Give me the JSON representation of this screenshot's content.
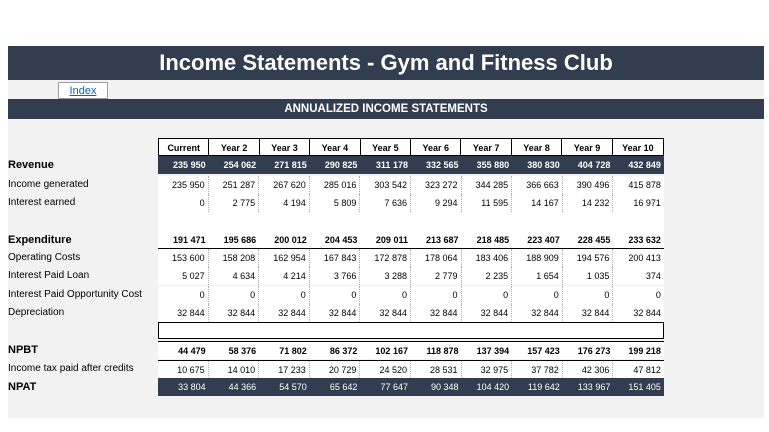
{
  "title": "Income Statements - Gym and Fitness Club",
  "index_link": "Index",
  "section_title": "ANNUALIZED INCOME STATEMENTS",
  "columns": [
    "Current",
    "Year 2",
    "Year 3",
    "Year 4",
    "Year 5",
    "Year 6",
    "Year 7",
    "Year 8",
    "Year 9",
    "Year 10"
  ],
  "rows": {
    "revenue": {
      "label": "Revenue",
      "values": [
        "235 950",
        "254 062",
        "271 815",
        "290 825",
        "311 178",
        "332 565",
        "355 880",
        "380 830",
        "404 728",
        "432 849"
      ]
    },
    "income_generated": {
      "label": "Income generated",
      "values": [
        "235 950",
        "251 287",
        "267 620",
        "285 016",
        "303 542",
        "323 272",
        "344 285",
        "366 663",
        "390 496",
        "415 878"
      ]
    },
    "interest_earned": {
      "label": "Interest earned",
      "values": [
        "0",
        "2 775",
        "4 194",
        "5 809",
        "7 636",
        "9 294",
        "11 595",
        "14 167",
        "14 232",
        "16 971"
      ]
    },
    "expenditure": {
      "label": "Expenditure",
      "values": [
        "191 471",
        "195 686",
        "200 012",
        "204 453",
        "209 011",
        "213 687",
        "218 485",
        "223 407",
        "228 455",
        "233 632"
      ]
    },
    "operating_costs": {
      "label": "Operating Costs",
      "values": [
        "153 600",
        "158 208",
        "162 954",
        "167 843",
        "172 878",
        "178 064",
        "183 406",
        "188 909",
        "194 576",
        "200 413"
      ]
    },
    "interest_loan": {
      "label": "Interest Paid Loan",
      "values": [
        "5 027",
        "4 634",
        "4 214",
        "3 766",
        "3 288",
        "2 779",
        "2 235",
        "1 654",
        "1 035",
        "374"
      ]
    },
    "interest_opportunity": {
      "label": "Interest Paid Opportunity Cost",
      "values": [
        "0",
        "0",
        "0",
        "0",
        "0",
        "0",
        "0",
        "0",
        "0",
        "0"
      ]
    },
    "depreciation": {
      "label": "Depreciation",
      "values": [
        "32 844",
        "32 844",
        "32 844",
        "32 844",
        "32 844",
        "32 844",
        "32 844",
        "32 844",
        "32 844",
        "32 844"
      ]
    },
    "npbt": {
      "label": "NPBT",
      "values": [
        "44 479",
        "58 376",
        "71 802",
        "86 372",
        "102 167",
        "118 878",
        "137 394",
        "157 423",
        "176 273",
        "199 218"
      ]
    },
    "tax": {
      "label": "Income tax paid after credits",
      "values": [
        "10 675",
        "14 010",
        "17 233",
        "20 729",
        "24 520",
        "28 531",
        "32 975",
        "37 782",
        "42 306",
        "47 812"
      ]
    },
    "npat": {
      "label": "NPAT",
      "values": [
        "33 804",
        "44 366",
        "54 570",
        "65 642",
        "77 647",
        "90 348",
        "104 420",
        "119 642",
        "133 967",
        "151 405"
      ]
    }
  }
}
